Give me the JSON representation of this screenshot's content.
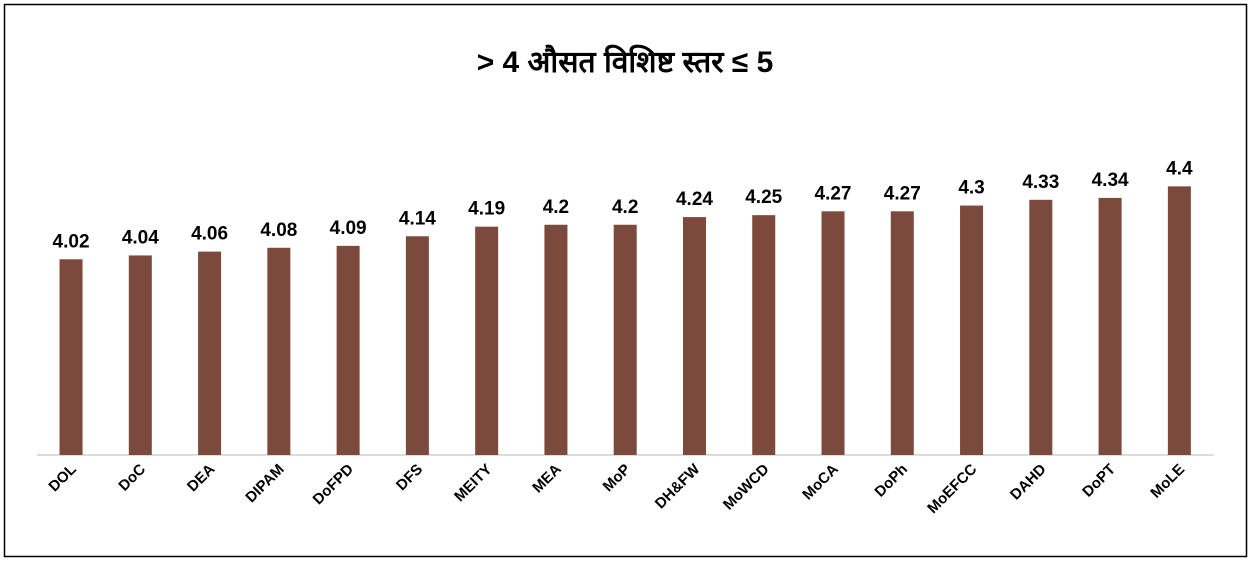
{
  "chart_data": {
    "type": "bar",
    "title": "> 4  औसत  विशिष्ट  स्तर ≤ 5",
    "categories": [
      "DOL",
      "DoC",
      "DEA",
      "DIPAM",
      "DoFPD",
      "DFS",
      "MEITY",
      "MEA",
      "MoP",
      "DH&FW",
      "MoWCD",
      "MoCA",
      "DoPh",
      "MoEFCC",
      "DAHD",
      "DoPT",
      "MoLE"
    ],
    "values": [
      4.02,
      4.04,
      4.06,
      4.08,
      4.09,
      4.14,
      4.19,
      4.2,
      4.2,
      4.24,
      4.25,
      4.27,
      4.27,
      4.3,
      4.33,
      4.34,
      4.4
    ],
    "color": "#7b4a3c",
    "ylim": [
      3,
      4.6
    ]
  }
}
